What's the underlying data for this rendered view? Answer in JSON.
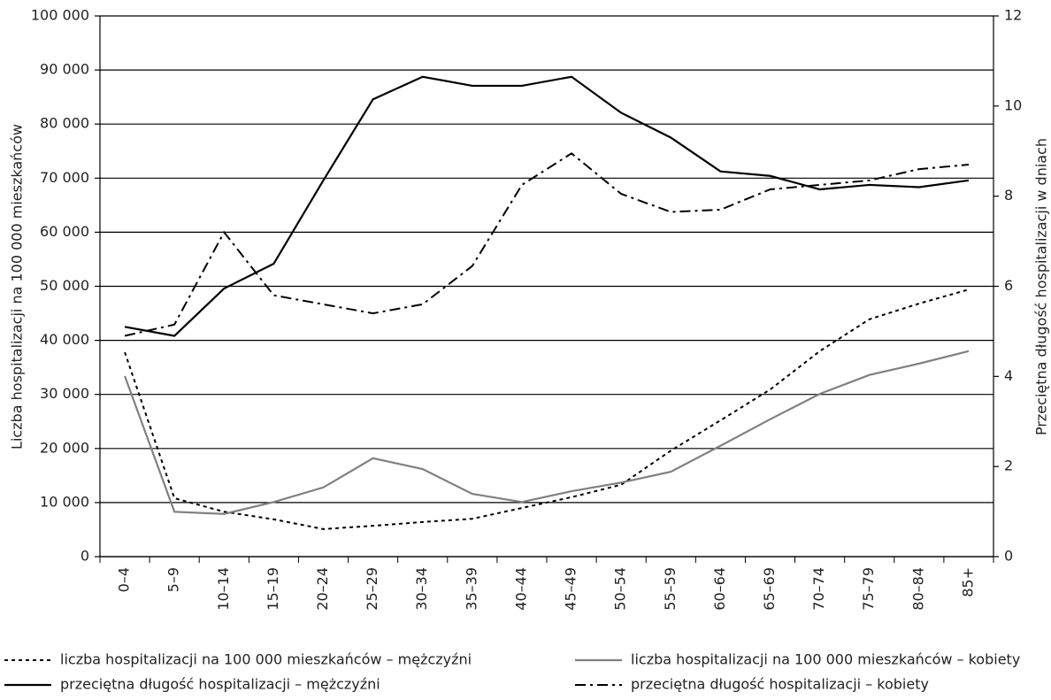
{
  "chart_data": {
    "type": "line",
    "ylabel": "Liczba hospitalizacji na 100 000 mieszkańców",
    "y2label": "Przeciętna długość hospitalizacji w dniach",
    "categories": [
      "0–4",
      "5–9",
      "10–14",
      "15–19",
      "20–24",
      "25–29",
      "30–34",
      "35–39",
      "40–44",
      "45–49",
      "50–54",
      "55–59",
      "60–64",
      "65–69",
      "70–74",
      "75–79",
      "80–84",
      "85+"
    ],
    "series": [
      {
        "name": "liczba hospitalizacji na 100 000 mieszkańców – mężczyźni",
        "color": "#000000",
        "dash": "4,4",
        "width": 2,
        "values": [
          37800,
          10800,
          8300,
          6900,
          5100,
          5700,
          6400,
          7000,
          9000,
          11000,
          13300,
          19600,
          25200,
          30900,
          38000,
          43900,
          46800,
          49400
        ]
      },
      {
        "name": "liczba hospitalizacji na 100 000 mieszkańców – kobiety",
        "color": "#808080",
        "dash": "none",
        "width": 2.2,
        "values": [
          33400,
          8300,
          7900,
          10100,
          12800,
          18200,
          16200,
          11600,
          10100,
          12100,
          13700,
          15700,
          20500,
          25400,
          30100,
          33600,
          35700,
          38000
        ]
      },
      {
        "name": "przeciętna długość hospitalizacji – mężczyźni",
        "color": "#000000",
        "dash": "none",
        "width": 2.2,
        "axis": "y2",
        "values": [
          5.1,
          4.9,
          5.95,
          6.5,
          8.35,
          10.15,
          10.65,
          10.45,
          10.45,
          10.65,
          9.85,
          9.3,
          8.55,
          8.45,
          8.15,
          8.25,
          8.2,
          8.35
        ]
      },
      {
        "name": "przeciętna długość hospitalizacji – kobiety",
        "color": "#000000",
        "dash": "12,5,3,5",
        "width": 2,
        "axis": "y2",
        "values": [
          4.9,
          5.15,
          7.2,
          5.8,
          5.6,
          5.4,
          5.6,
          6.45,
          8.25,
          8.95,
          8.05,
          7.65,
          7.7,
          8.15,
          8.25,
          8.35,
          8.6,
          8.7
        ]
      }
    ],
    "ylim": [
      0,
      100000
    ],
    "yticks": [
      0,
      {
        "value": 10000,
        "label": "10 000"
      },
      {
        "value": 20000,
        "label": "20 000"
      },
      {
        "value": 30000,
        "label": "30 000"
      },
      {
        "value": 40000,
        "label": "40 000"
      },
      {
        "value": 50000,
        "label": "50 000"
      },
      {
        "value": 60000,
        "label": "60 000"
      },
      {
        "value": 70000,
        "label": "70 000"
      },
      {
        "value": 80000,
        "label": "80 000"
      },
      {
        "value": 90000,
        "label": "90 000"
      },
      {
        "value": 100000,
        "label": "100 000"
      }
    ],
    "y2lim": [
      0,
      12
    ],
    "y2ticks": [
      0,
      2,
      4,
      6,
      8,
      10,
      12
    ],
    "grid": true
  }
}
